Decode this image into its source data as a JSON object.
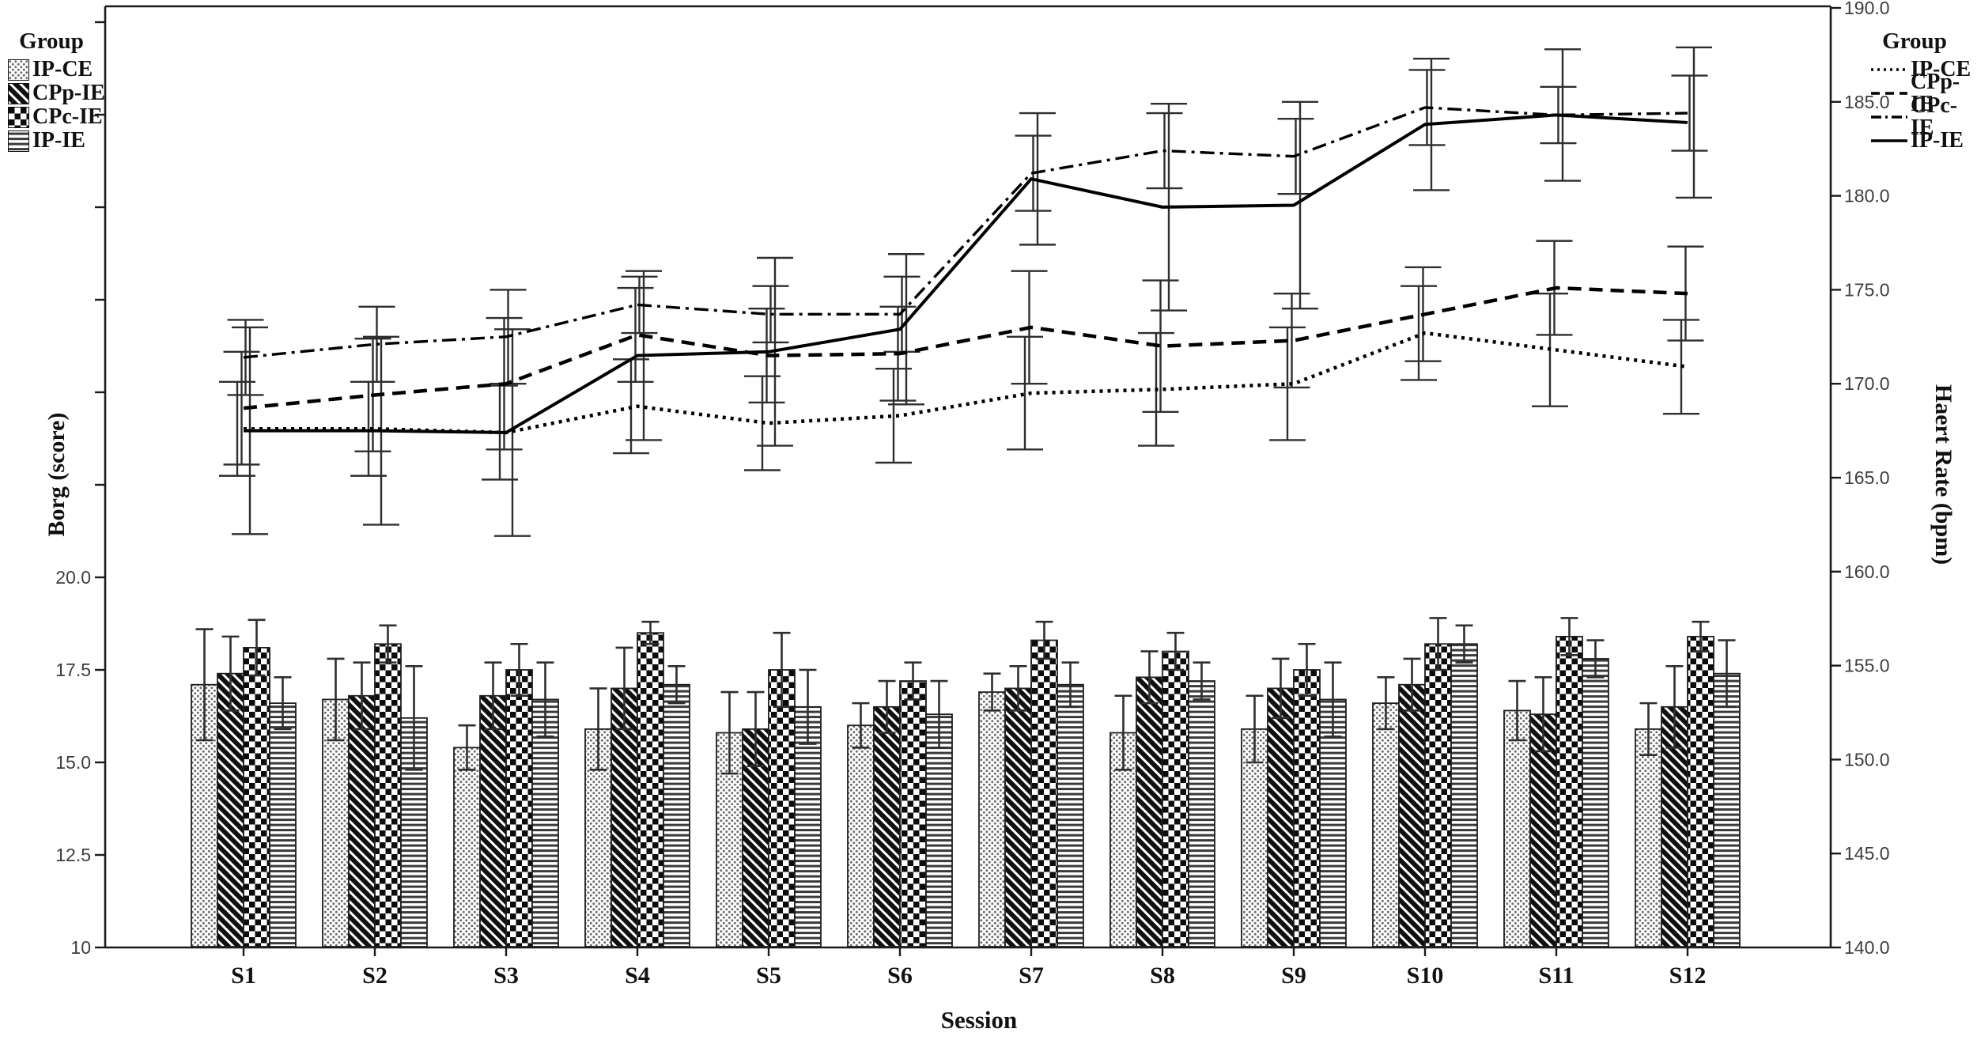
{
  "page": {
    "background": "#ffffff"
  },
  "chart_data": {
    "type": [
      "bar",
      "line"
    ],
    "title": "",
    "xlabel": "Session",
    "categories": [
      "S1",
      "S2",
      "S3",
      "S4",
      "S5",
      "S6",
      "S7",
      "S8",
      "S9",
      "S10",
      "S11",
      "S12"
    ],
    "bar_axis": {
      "side": "left",
      "label": "Borg (score)",
      "range": [
        10,
        35.4
      ],
      "labeled_ticks": [
        {
          "value": 20.0,
          "label": "20.0"
        },
        {
          "value": 17.5,
          "label": "17.5"
        },
        {
          "value": 15.0,
          "label": "15.0"
        },
        {
          "value": 12.5,
          "label": "12.5"
        },
        {
          "value": 10.0,
          "label": "10"
        }
      ],
      "unlabeled_ticks": [
        22.5,
        25.0,
        27.5,
        30.0,
        32.5,
        35.0
      ]
    },
    "line_axis": {
      "side": "right",
      "label": "Haert Rate (bpm)",
      "range": [
        140.0,
        190.0
      ],
      "tick_values": [
        140.0,
        145.0,
        150.0,
        155.0,
        160.0,
        165.0,
        170.0,
        175.0,
        180.0,
        185.0,
        190.0
      ],
      "tick_labels": [
        "140.0",
        "145.0",
        "150.0",
        "155.0",
        "160.0",
        "165.0",
        "170.0",
        "175.0",
        "180.0",
        "185.0",
        "190.0"
      ]
    },
    "legend_bars": {
      "title": "Group",
      "position": "top-left"
    },
    "legend_lines": {
      "title": "Group",
      "position": "top-right"
    },
    "bar_series": [
      {
        "name": "IP-CE",
        "pattern": "dots",
        "values": [
          17.1,
          16.7,
          15.4,
          15.9,
          15.8,
          16.0,
          16.9,
          15.8,
          15.9,
          16.6,
          16.4,
          15.9
        ],
        "errors": [
          1.5,
          1.1,
          0.6,
          1.1,
          1.1,
          0.6,
          0.5,
          1.0,
          0.9,
          0.7,
          0.8,
          0.7
        ]
      },
      {
        "name": "CPp-IE",
        "pattern": "diagonal-stripes",
        "values": [
          17.4,
          16.8,
          16.8,
          17.0,
          15.9,
          16.5,
          17.0,
          17.3,
          17.0,
          17.1,
          16.3,
          16.5
        ],
        "errors": [
          1.0,
          0.9,
          0.9,
          1.1,
          1.0,
          0.7,
          0.6,
          0.7,
          0.8,
          0.7,
          1.0,
          1.1
        ]
      },
      {
        "name": "CPc-IE",
        "pattern": "checkerboard",
        "values": [
          18.1,
          18.2,
          17.5,
          18.5,
          17.5,
          17.2,
          18.3,
          18.0,
          17.5,
          18.2,
          18.4,
          18.4
        ],
        "errors": [
          0.75,
          0.5,
          0.7,
          0.3,
          1.0,
          0.5,
          0.5,
          0.5,
          0.7,
          0.7,
          0.5,
          0.4
        ]
      },
      {
        "name": "IP-IE",
        "pattern": "horizontal-stripes",
        "values": [
          16.6,
          16.2,
          16.7,
          17.1,
          16.5,
          16.3,
          17.1,
          17.2,
          16.7,
          18.2,
          17.8,
          17.4
        ],
        "errors": [
          0.7,
          1.4,
          1.0,
          0.5,
          1.0,
          0.9,
          0.6,
          0.5,
          1.0,
          0.5,
          0.5,
          0.9
        ]
      }
    ],
    "line_series": [
      {
        "name": "IP-CE",
        "line_style": "dotted",
        "values": [
          167.6,
          167.6,
          167.4,
          168.8,
          167.9,
          168.3,
          169.5,
          169.7,
          170.0,
          172.7,
          171.8,
          170.9
        ],
        "errors": [
          2.5,
          2.5,
          2.5,
          2.5,
          2.5,
          2.5,
          3.0,
          3.0,
          3.0,
          2.5,
          3.0,
          2.5
        ]
      },
      {
        "name": "CPp-IE",
        "line_style": "dashed",
        "values": [
          168.7,
          169.4,
          170.0,
          172.6,
          171.5,
          171.6,
          173.0,
          172.0,
          172.3,
          173.7,
          175.1,
          174.8
        ],
        "errors": [
          3.0,
          3.0,
          3.5,
          2.5,
          2.5,
          2.5,
          3.0,
          3.5,
          2.5,
          2.5,
          2.5,
          2.5
        ]
      },
      {
        "name": "CPc-IE",
        "line_style": "dash-dot",
        "values": [
          171.4,
          172.1,
          172.5,
          174.2,
          173.7,
          173.7,
          181.2,
          182.4,
          182.1,
          184.7,
          184.3,
          184.4
        ],
        "errors": [
          2.0,
          2.0,
          2.5,
          1.5,
          1.5,
          2.0,
          2.0,
          2.0,
          2.0,
          2.0,
          1.5,
          2.0
        ]
      },
      {
        "name": "IP-IE",
        "line_style": "solid",
        "values": [
          167.5,
          167.5,
          167.4,
          171.5,
          171.7,
          172.9,
          180.9,
          179.4,
          179.5,
          183.8,
          184.3,
          183.9
        ],
        "errors": [
          5.5,
          5.0,
          5.5,
          4.5,
          5.0,
          4.0,
          3.5,
          5.5,
          5.5,
          3.5,
          3.5,
          4.0
        ]
      }
    ],
    "colors": {
      "ink": "#1a1a1a",
      "tick_label": "#3d3d3d",
      "error_bar": "#2e2e2e",
      "background": "#ffffff"
    }
  }
}
